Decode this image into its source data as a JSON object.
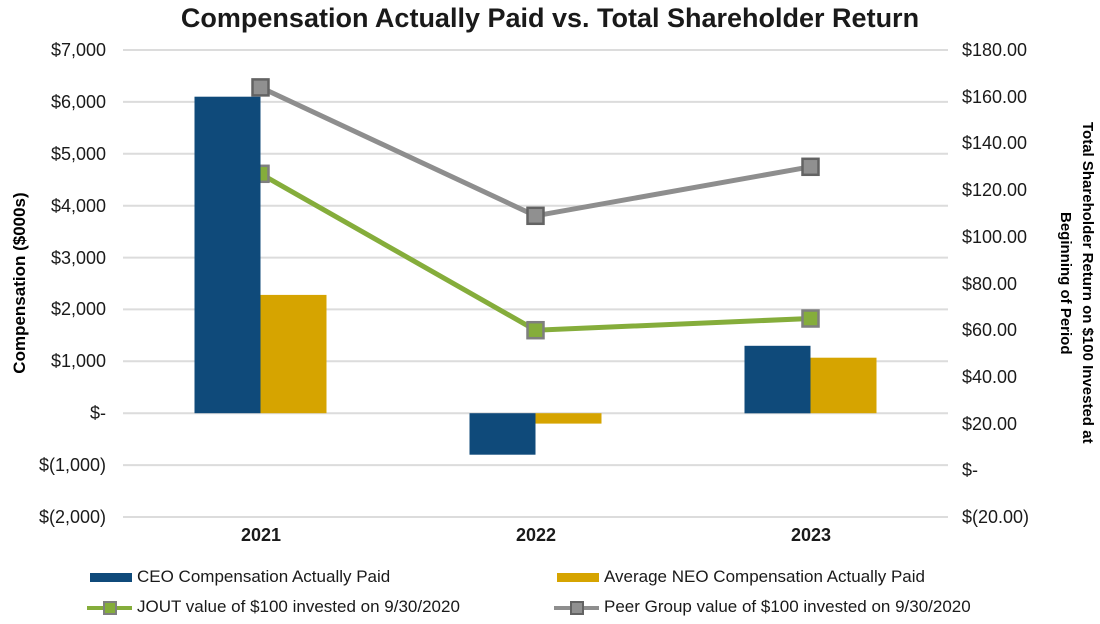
{
  "title": "Compensation Actually Paid vs. Total Shareholder Return",
  "left_axis": {
    "title": "Compensation ($000s)",
    "tick_labels": [
      "$7,000",
      "$6,000",
      "$5,000",
      "$4,000",
      "$3,000",
      "$2,000",
      "$1,000",
      "$-",
      "$(1,000)",
      "$(2,000)"
    ],
    "max": 7000,
    "min": -2000,
    "step": 1000
  },
  "right_axis": {
    "title_line1": "Total Shareholder Return on $100 Invested at",
    "title_line2": "Beginning of Period",
    "tick_labels": [
      "$180.00",
      "$160.00",
      "$140.00",
      "$120.00",
      "$100.00",
      "$80.00",
      "$60.00",
      "$40.00",
      "$20.00",
      "$-",
      "$(20.00)"
    ],
    "max": 180,
    "min": -20,
    "step": 20
  },
  "chart_data": {
    "type": "combo-bar-line",
    "categories": [
      "2021",
      "2022",
      "2023"
    ],
    "bar_series": [
      {
        "name": "CEO Compensation Actually Paid",
        "axis": "left",
        "color": "#0f4a7a",
        "values": [
          6100,
          -800,
          1300
        ]
      },
      {
        "name": "Average NEO Compensation Actually Paid",
        "axis": "left",
        "color": "#d6a400",
        "values": [
          2280,
          -200,
          1070
        ]
      }
    ],
    "line_series": [
      {
        "name": "JOUT value of $100 invested on 9/30/2020",
        "axis": "right",
        "color": "#85ad3b",
        "marker_fill": "#85ad3b",
        "marker_border": "#7f7f7f",
        "values": [
          127,
          60,
          65
        ]
      },
      {
        "name": "Peer Group value of $100 invested on 9/30/2020",
        "axis": "right",
        "color": "#8e8e8e",
        "marker_fill": "#909090",
        "marker_border": "#636363",
        "values": [
          164,
          109,
          130
        ]
      }
    ],
    "left_ylim": [
      -2000,
      7000
    ],
    "right_ylim": [
      -20,
      180
    ],
    "grid": true,
    "gridline_color": "#dcdcdc",
    "legend_position": "bottom"
  }
}
